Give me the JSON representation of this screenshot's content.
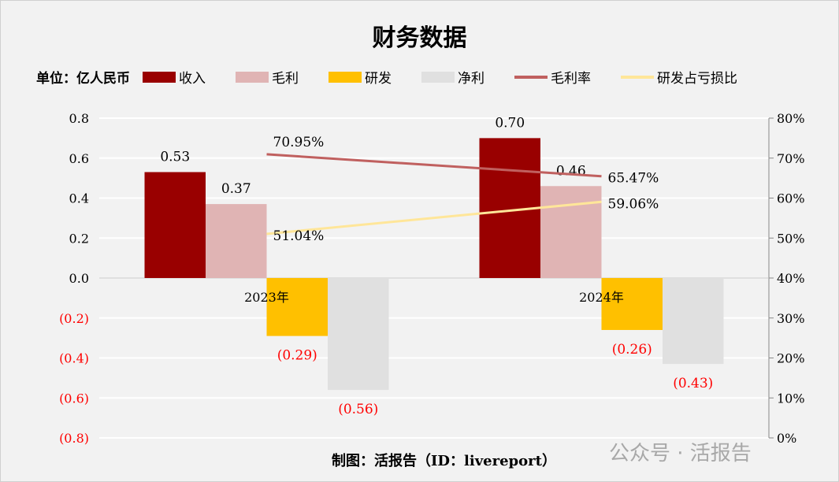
{
  "chart_data": {
    "type": "bar+line",
    "title": "财务数据",
    "unit_label": "单位：亿人民币",
    "categories": [
      "2023年",
      "2024年"
    ],
    "series": [
      {
        "name": "收入",
        "kind": "bar",
        "axis": "left",
        "color": "#990000",
        "values": [
          0.53,
          0.7
        ],
        "labels": [
          "0.53",
          "0.70"
        ]
      },
      {
        "name": "毛利",
        "kind": "bar",
        "axis": "left",
        "color": "#e0b4b4",
        "values": [
          0.37,
          0.46
        ],
        "labels": [
          "0.37",
          "0.46"
        ]
      },
      {
        "name": "研发",
        "kind": "bar",
        "axis": "left",
        "color": "#ffc000",
        "values": [
          -0.29,
          -0.26
        ],
        "labels": [
          "(0.29)",
          "(0.26)"
        ]
      },
      {
        "name": "净利",
        "kind": "bar",
        "axis": "left",
        "color": "#e0e0e0",
        "values": [
          -0.56,
          -0.43
        ],
        "labels": [
          "(0.56)",
          "(0.43)"
        ]
      },
      {
        "name": "毛利率",
        "kind": "line",
        "axis": "right",
        "color": "#c0605f",
        "values": [
          70.95,
          65.47
        ],
        "labels": [
          "70.95%",
          "65.47%"
        ]
      },
      {
        "name": "研发占亏损比",
        "kind": "line",
        "axis": "right",
        "color": "#ffe699",
        "values": [
          51.04,
          59.06
        ],
        "labels": [
          "51.04%",
          "59.06%"
        ]
      }
    ],
    "left_axis": {
      "range": [
        -0.8,
        0.8
      ],
      "ticks": [
        "0.8",
        "0.6",
        "0.4",
        "0.2",
        "0.0",
        "(0.2)",
        "(0.4)",
        "(0.6)",
        "(0.8)"
      ],
      "negative_color": "#ff0000"
    },
    "right_axis": {
      "range": [
        0,
        80
      ],
      "ticks": [
        "80%",
        "70%",
        "60%",
        "50%",
        "40%",
        "30%",
        "20%",
        "10%",
        "0%"
      ]
    },
    "grid": true,
    "legend": "top"
  },
  "footer": "制图：活报告（ID：livereport）",
  "watermark": "公众号 · 活报告"
}
